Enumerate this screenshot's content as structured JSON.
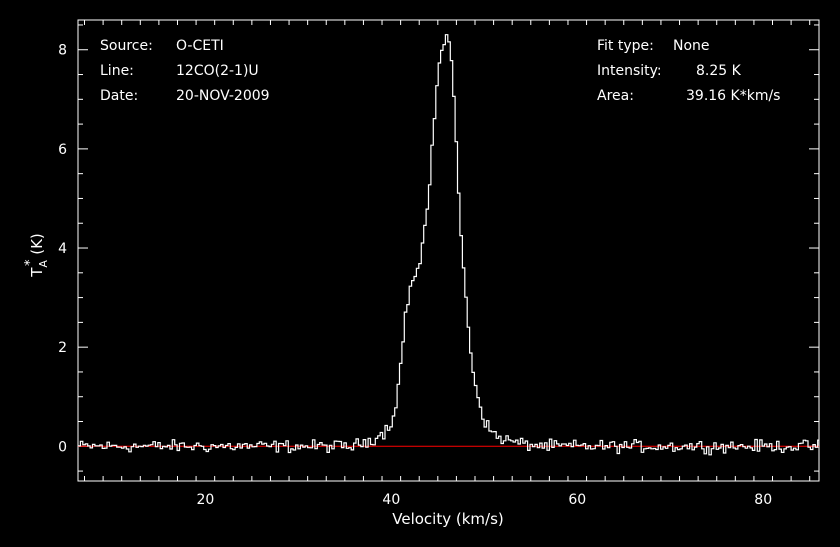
{
  "chart_data": {
    "type": "line",
    "xlabel": "Velocity (km/s)",
    "ylabel": {
      "base": "T",
      "sub": "A",
      "sup": "*",
      "unit": " (K)"
    },
    "xlim": [
      6.3,
      86.0
    ],
    "ylim": [
      -0.7,
      8.6
    ],
    "x_ticks": [
      20,
      40,
      60,
      80
    ],
    "x_tick_labels": [
      "20",
      "40",
      "60",
      "80"
    ],
    "y_ticks": [
      0,
      2,
      4,
      6,
      8
    ],
    "y_tick_labels": [
      "0",
      "2",
      "4",
      "6",
      "8"
    ],
    "baseline": 0,
    "baseline_color": "#ff0000",
    "line_color": "#ffffff",
    "series": [
      {
        "x": [
          36.0,
          38.0,
          39.0,
          40.0,
          40.5,
          41.0,
          41.5,
          42.0,
          42.5,
          43.0,
          43.5,
          44.0,
          44.5,
          45.0,
          45.5,
          46.0,
          46.3,
          46.6,
          47.0,
          47.5,
          48.0,
          48.5,
          49.0,
          49.5,
          50.0,
          50.5,
          51.0,
          52.0,
          53.0,
          54.0,
          55.0,
          57.0
        ],
        "y": [
          0.0,
          0.15,
          0.25,
          0.45,
          0.9,
          1.6,
          2.6,
          3.2,
          3.4,
          3.6,
          4.3,
          4.9,
          6.2,
          7.6,
          8.1,
          8.25,
          8.2,
          7.5,
          6.0,
          4.3,
          3.0,
          2.0,
          1.3,
          0.85,
          0.55,
          0.35,
          0.25,
          0.15,
          0.1,
          0.05,
          0.03,
          0.0
        ]
      }
    ]
  },
  "annotations": {
    "left": [
      {
        "label": "Source:",
        "value": "O-CETI"
      },
      {
        "label": "Line:",
        "value": "12CO(2-1)U"
      },
      {
        "label": "Date:",
        "value": "20-NOV-2009"
      }
    ],
    "right": [
      {
        "label": "Fit type:",
        "value": "None"
      },
      {
        "label": "Intensity:",
        "value": "8.25 K"
      },
      {
        "label": "Area:",
        "value": "39.16 K*km/s"
      }
    ]
  }
}
